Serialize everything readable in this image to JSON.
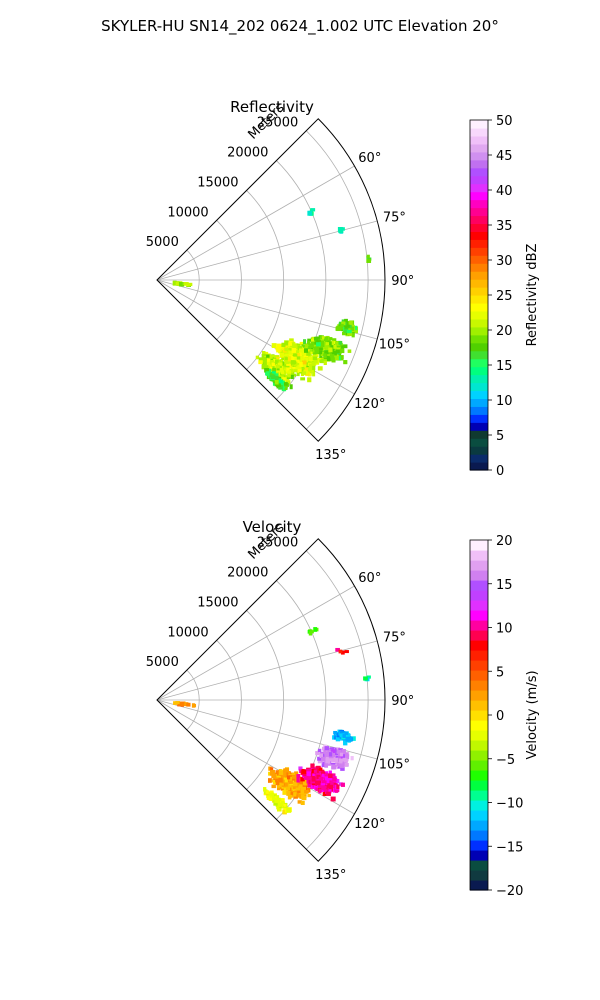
{
  "figure": {
    "title": "SKYLER-HU  SN14_202  0624_1.002 UTC Elevation 20°"
  },
  "chart_data": [
    {
      "type": "heatmap",
      "projection": "polar-sector",
      "title": "Reflectivity",
      "radial_label": "Meters",
      "radial_ticks": [
        5000,
        10000,
        15000,
        20000,
        25000
      ],
      "radial_tick_labels": [
        "5000",
        "10000",
        "15000",
        "20000",
        "25000"
      ],
      "rlim": [
        0,
        27000
      ],
      "theta_ticks_deg": [
        60,
        75,
        90,
        105,
        120,
        135
      ],
      "theta_tick_labels": [
        "60°",
        "75°",
        "90°",
        "105°",
        "120°",
        "135°"
      ],
      "theta_range_deg": [
        45,
        135
      ],
      "grid": true,
      "colorbar": {
        "label": "Reflectivity dBZ",
        "range": [
          0,
          50
        ],
        "ticks": [
          0,
          5,
          10,
          15,
          20,
          25,
          30,
          35,
          40,
          45,
          50
        ],
        "tick_labels": [
          "0",
          "5",
          "10",
          "15",
          "20",
          "25",
          "30",
          "35",
          "40",
          "45",
          "50"
        ],
        "colors": [
          "#0a1a50",
          "#0a2b6a",
          "#0a3a40",
          "#0a4d40",
          "#103a30",
          "#0000b4",
          "#0030ff",
          "#0078ff",
          "#00a8ff",
          "#00d2ff",
          "#00e6d0",
          "#00f0b0",
          "#00ff80",
          "#20ff60",
          "#40e030",
          "#50d000",
          "#70e000",
          "#a0f000",
          "#c8f800",
          "#e6ff00",
          "#ffff00",
          "#ffe800",
          "#ffd000",
          "#ffb800",
          "#ffa000",
          "#ff8000",
          "#ff6000",
          "#ff4000",
          "#ff2000",
          "#ff0000",
          "#ff0030",
          "#ff0060",
          "#ff0090",
          "#ff00c0",
          "#ff00ff",
          "#e030ff",
          "#c040ff",
          "#b050ff",
          "#c070f0",
          "#d090f0",
          "#e0a8f0",
          "#f0c0f8",
          "#f8d8fc",
          "#fff0ff"
        ]
      },
      "echo_clusters": [
        {
          "theta_deg": 119,
          "r_m": 19000,
          "spread_deg": 6,
          "spread_m": 3500,
          "value": 22,
          "count": 420
        },
        {
          "theta_deg": 112,
          "r_m": 21500,
          "spread_deg": 5,
          "spread_m": 3000,
          "value": 19,
          "count": 300
        },
        {
          "theta_deg": 104,
          "r_m": 23000,
          "spread_deg": 3,
          "spread_m": 1500,
          "value": 18,
          "count": 80
        },
        {
          "theta_deg": 126,
          "r_m": 17500,
          "spread_deg": 4,
          "spread_m": 3000,
          "value": 21,
          "count": 200
        },
        {
          "theta_deg": 130,
          "r_m": 18500,
          "spread_deg": 2,
          "spread_m": 2500,
          "value": 17,
          "count": 80
        },
        {
          "theta_deg": 66,
          "r_m": 20000,
          "spread_deg": 1,
          "spread_m": 800,
          "value": 14,
          "count": 6
        },
        {
          "theta_deg": 75,
          "r_m": 22500,
          "spread_deg": 1,
          "spread_m": 800,
          "value": 13,
          "count": 5
        },
        {
          "theta_deg": 84,
          "r_m": 25000,
          "spread_deg": 1,
          "spread_m": 500,
          "value": 18,
          "count": 4
        },
        {
          "theta_deg": 98,
          "r_m": 3000,
          "spread_deg": 2,
          "spread_m": 2000,
          "value": 20,
          "count": 15
        }
      ]
    },
    {
      "type": "heatmap",
      "projection": "polar-sector",
      "title": "Velocity",
      "radial_label": "Meters",
      "radial_ticks": [
        5000,
        10000,
        15000,
        20000,
        25000
      ],
      "radial_tick_labels": [
        "5000",
        "10000",
        "15000",
        "20000",
        "25000"
      ],
      "rlim": [
        0,
        27000
      ],
      "theta_ticks_deg": [
        60,
        75,
        90,
        105,
        120,
        135
      ],
      "theta_tick_labels": [
        "60°",
        "75°",
        "90°",
        "105°",
        "120°",
        "135°"
      ],
      "theta_range_deg": [
        45,
        135
      ],
      "grid": true,
      "colorbar": {
        "label": "Velocity (m/s)",
        "range": [
          -20,
          20
        ],
        "ticks": [
          -20,
          -15,
          -10,
          -5,
          0,
          5,
          10,
          15,
          20
        ],
        "tick_labels": [
          "−20",
          "−15",
          "−10",
          "−5",
          "0",
          "5",
          "10",
          "15",
          "20"
        ],
        "colors": [
          "#0a1a50",
          "#103a40",
          "#0a4d40",
          "#0000b4",
          "#0030ff",
          "#0078ff",
          "#00a8ff",
          "#00d2ff",
          "#00f0e0",
          "#00ff90",
          "#00ff40",
          "#20ff00",
          "#60f000",
          "#90f000",
          "#c0f800",
          "#e6ff00",
          "#ffff00",
          "#ffe000",
          "#ffc000",
          "#ffa000",
          "#ff8000",
          "#ff6000",
          "#ff4000",
          "#ff2000",
          "#ff0000",
          "#ff0050",
          "#ff00a0",
          "#ff00ff",
          "#e030ff",
          "#c040ff",
          "#b050ff",
          "#d080f0",
          "#e0a0f0",
          "#f0c0f8",
          "#fff0ff"
        ]
      },
      "echo_clusters": [
        {
          "theta_deg": 122,
          "r_m": 18500,
          "spread_deg": 5,
          "spread_m": 3500,
          "value": 2,
          "count": 380
        },
        {
          "theta_deg": 116,
          "r_m": 21500,
          "spread_deg": 4,
          "spread_m": 3000,
          "value": 10,
          "count": 380
        },
        {
          "theta_deg": 108,
          "r_m": 22000,
          "spread_deg": 4,
          "spread_m": 2500,
          "value": 16,
          "count": 260
        },
        {
          "theta_deg": 101,
          "r_m": 22500,
          "spread_deg": 2,
          "spread_m": 1500,
          "value": -12,
          "count": 60
        },
        {
          "theta_deg": 130,
          "r_m": 18500,
          "spread_deg": 2,
          "spread_m": 2500,
          "value": -2,
          "count": 80
        },
        {
          "theta_deg": 66,
          "r_m": 20000,
          "spread_deg": 1,
          "spread_m": 800,
          "value": -5,
          "count": 6
        },
        {
          "theta_deg": 75,
          "r_m": 22500,
          "spread_deg": 1,
          "spread_m": 800,
          "value": 8,
          "count": 4
        },
        {
          "theta_deg": 84,
          "r_m": 25000,
          "spread_deg": 1,
          "spread_m": 500,
          "value": -10,
          "count": 4
        },
        {
          "theta_deg": 98,
          "r_m": 3000,
          "spread_deg": 2,
          "spread_m": 2000,
          "value": 3,
          "count": 15
        }
      ]
    }
  ]
}
